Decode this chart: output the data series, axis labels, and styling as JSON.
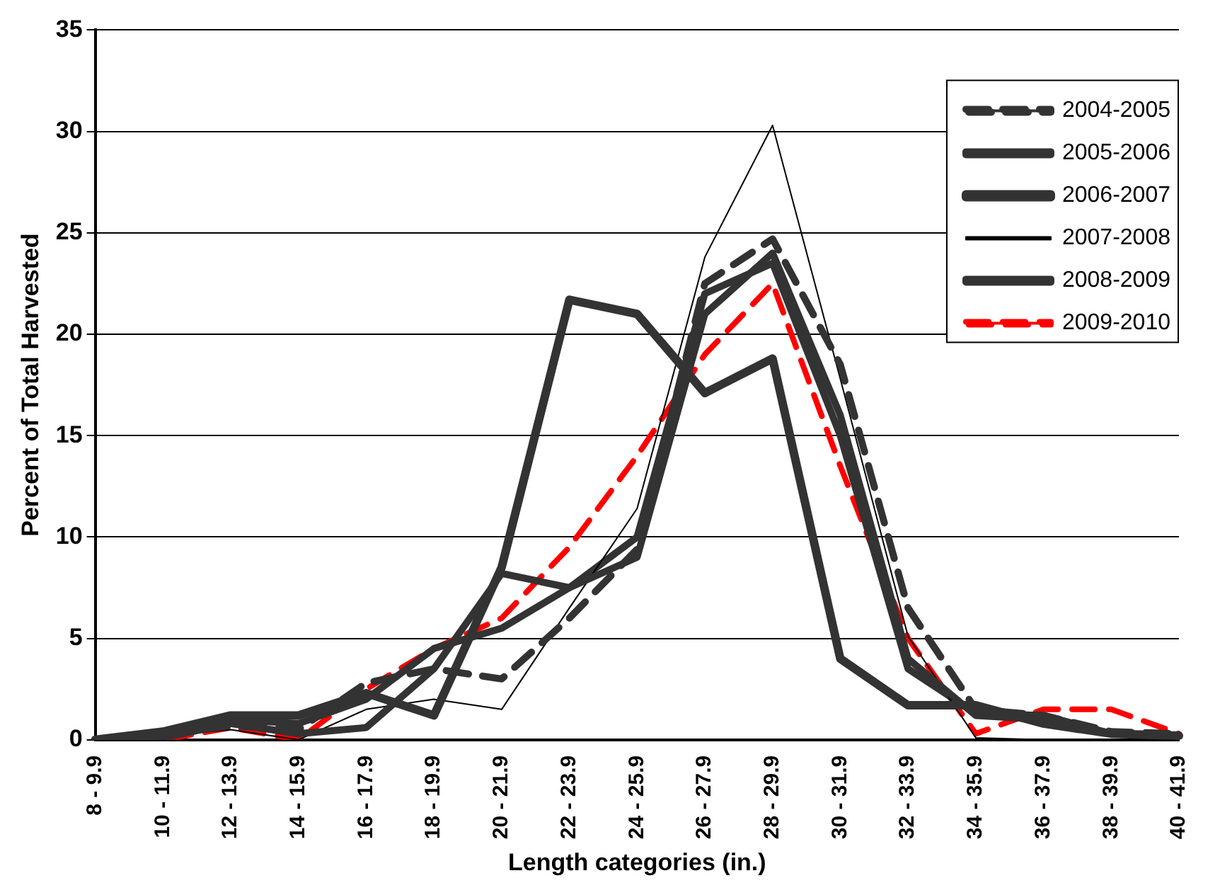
{
  "chart_data": {
    "type": "line",
    "xlabel": "Length categories (in.)",
    "ylabel": "Percent of Total Harvested",
    "categories": [
      "8 - 9.9",
      "10 - 11.9",
      "12 - 13.9",
      "14 - 15.9",
      "16 - 17.9",
      "18 - 19.9",
      "20 - 21.9",
      "22 - 23.9",
      "24 - 25.9",
      "26 - 27.9",
      "28 - 29.9",
      "30 - 31.9",
      "32 - 33.9",
      "34 - 35.9",
      "36 - 37.9",
      "38 - 39.9",
      "40 - 41.9"
    ],
    "series": [
      {
        "name": "2004-2005",
        "color": "#333333",
        "line_style": "dashed",
        "values": [
          0,
          0.2,
          0.7,
          0.5,
          2.8,
          3.5,
          3.0,
          6.0,
          9.4,
          22.5,
          24.7,
          18.5,
          6.5,
          1.5,
          1.2,
          0.4,
          0.3
        ]
      },
      {
        "name": "2005-2006",
        "color": "#333333",
        "line_style": "solid",
        "values": [
          0,
          0.1,
          0.8,
          0.3,
          0.6,
          3.5,
          8.2,
          7.5,
          9.0,
          21.0,
          24.0,
          16.0,
          4.0,
          1.2,
          1.0,
          0.3,
          0.2
        ]
      },
      {
        "name": "2006-2007",
        "color": "#333333",
        "line_style": "solid",
        "values": [
          0,
          0.4,
          1.2,
          1.2,
          2.3,
          1.2,
          8.5,
          21.7,
          21.0,
          17.1,
          18.8,
          4.0,
          1.7,
          1.7,
          0.8,
          0.3,
          0.2
        ]
      },
      {
        "name": "2007-2008",
        "color": "#000000",
        "line_style": "solid",
        "values": [
          0,
          0.2,
          0.5,
          0,
          1.5,
          2.0,
          1.5,
          6.5,
          11.4,
          23.8,
          30.3,
          17.8,
          5.1,
          0.1,
          0,
          0,
          0
        ]
      },
      {
        "name": "2008-2009",
        "color": "#333333",
        "line_style": "solid",
        "values": [
          0,
          0.2,
          1.0,
          0.8,
          2.0,
          4.5,
          5.5,
          7.5,
          10.0,
          22.0,
          23.5,
          15.0,
          3.5,
          1.3,
          1.2,
          0.3,
          0.2
        ]
      },
      {
        "name": "2009-2010",
        "color": "#ff0000",
        "line_style": "dashed",
        "values": [
          0,
          0,
          0.6,
          0,
          2.5,
          4.5,
          6.0,
          9.5,
          14.0,
          19.0,
          22.5,
          13.5,
          5.0,
          0.3,
          1.5,
          1.5,
          0.3
        ]
      }
    ],
    "ylim": [
      0,
      35
    ],
    "yticks": [
      0,
      5,
      10,
      15,
      20,
      25,
      30,
      35
    ],
    "grid": "y",
    "legend": "top right",
    "marker": "none"
  }
}
